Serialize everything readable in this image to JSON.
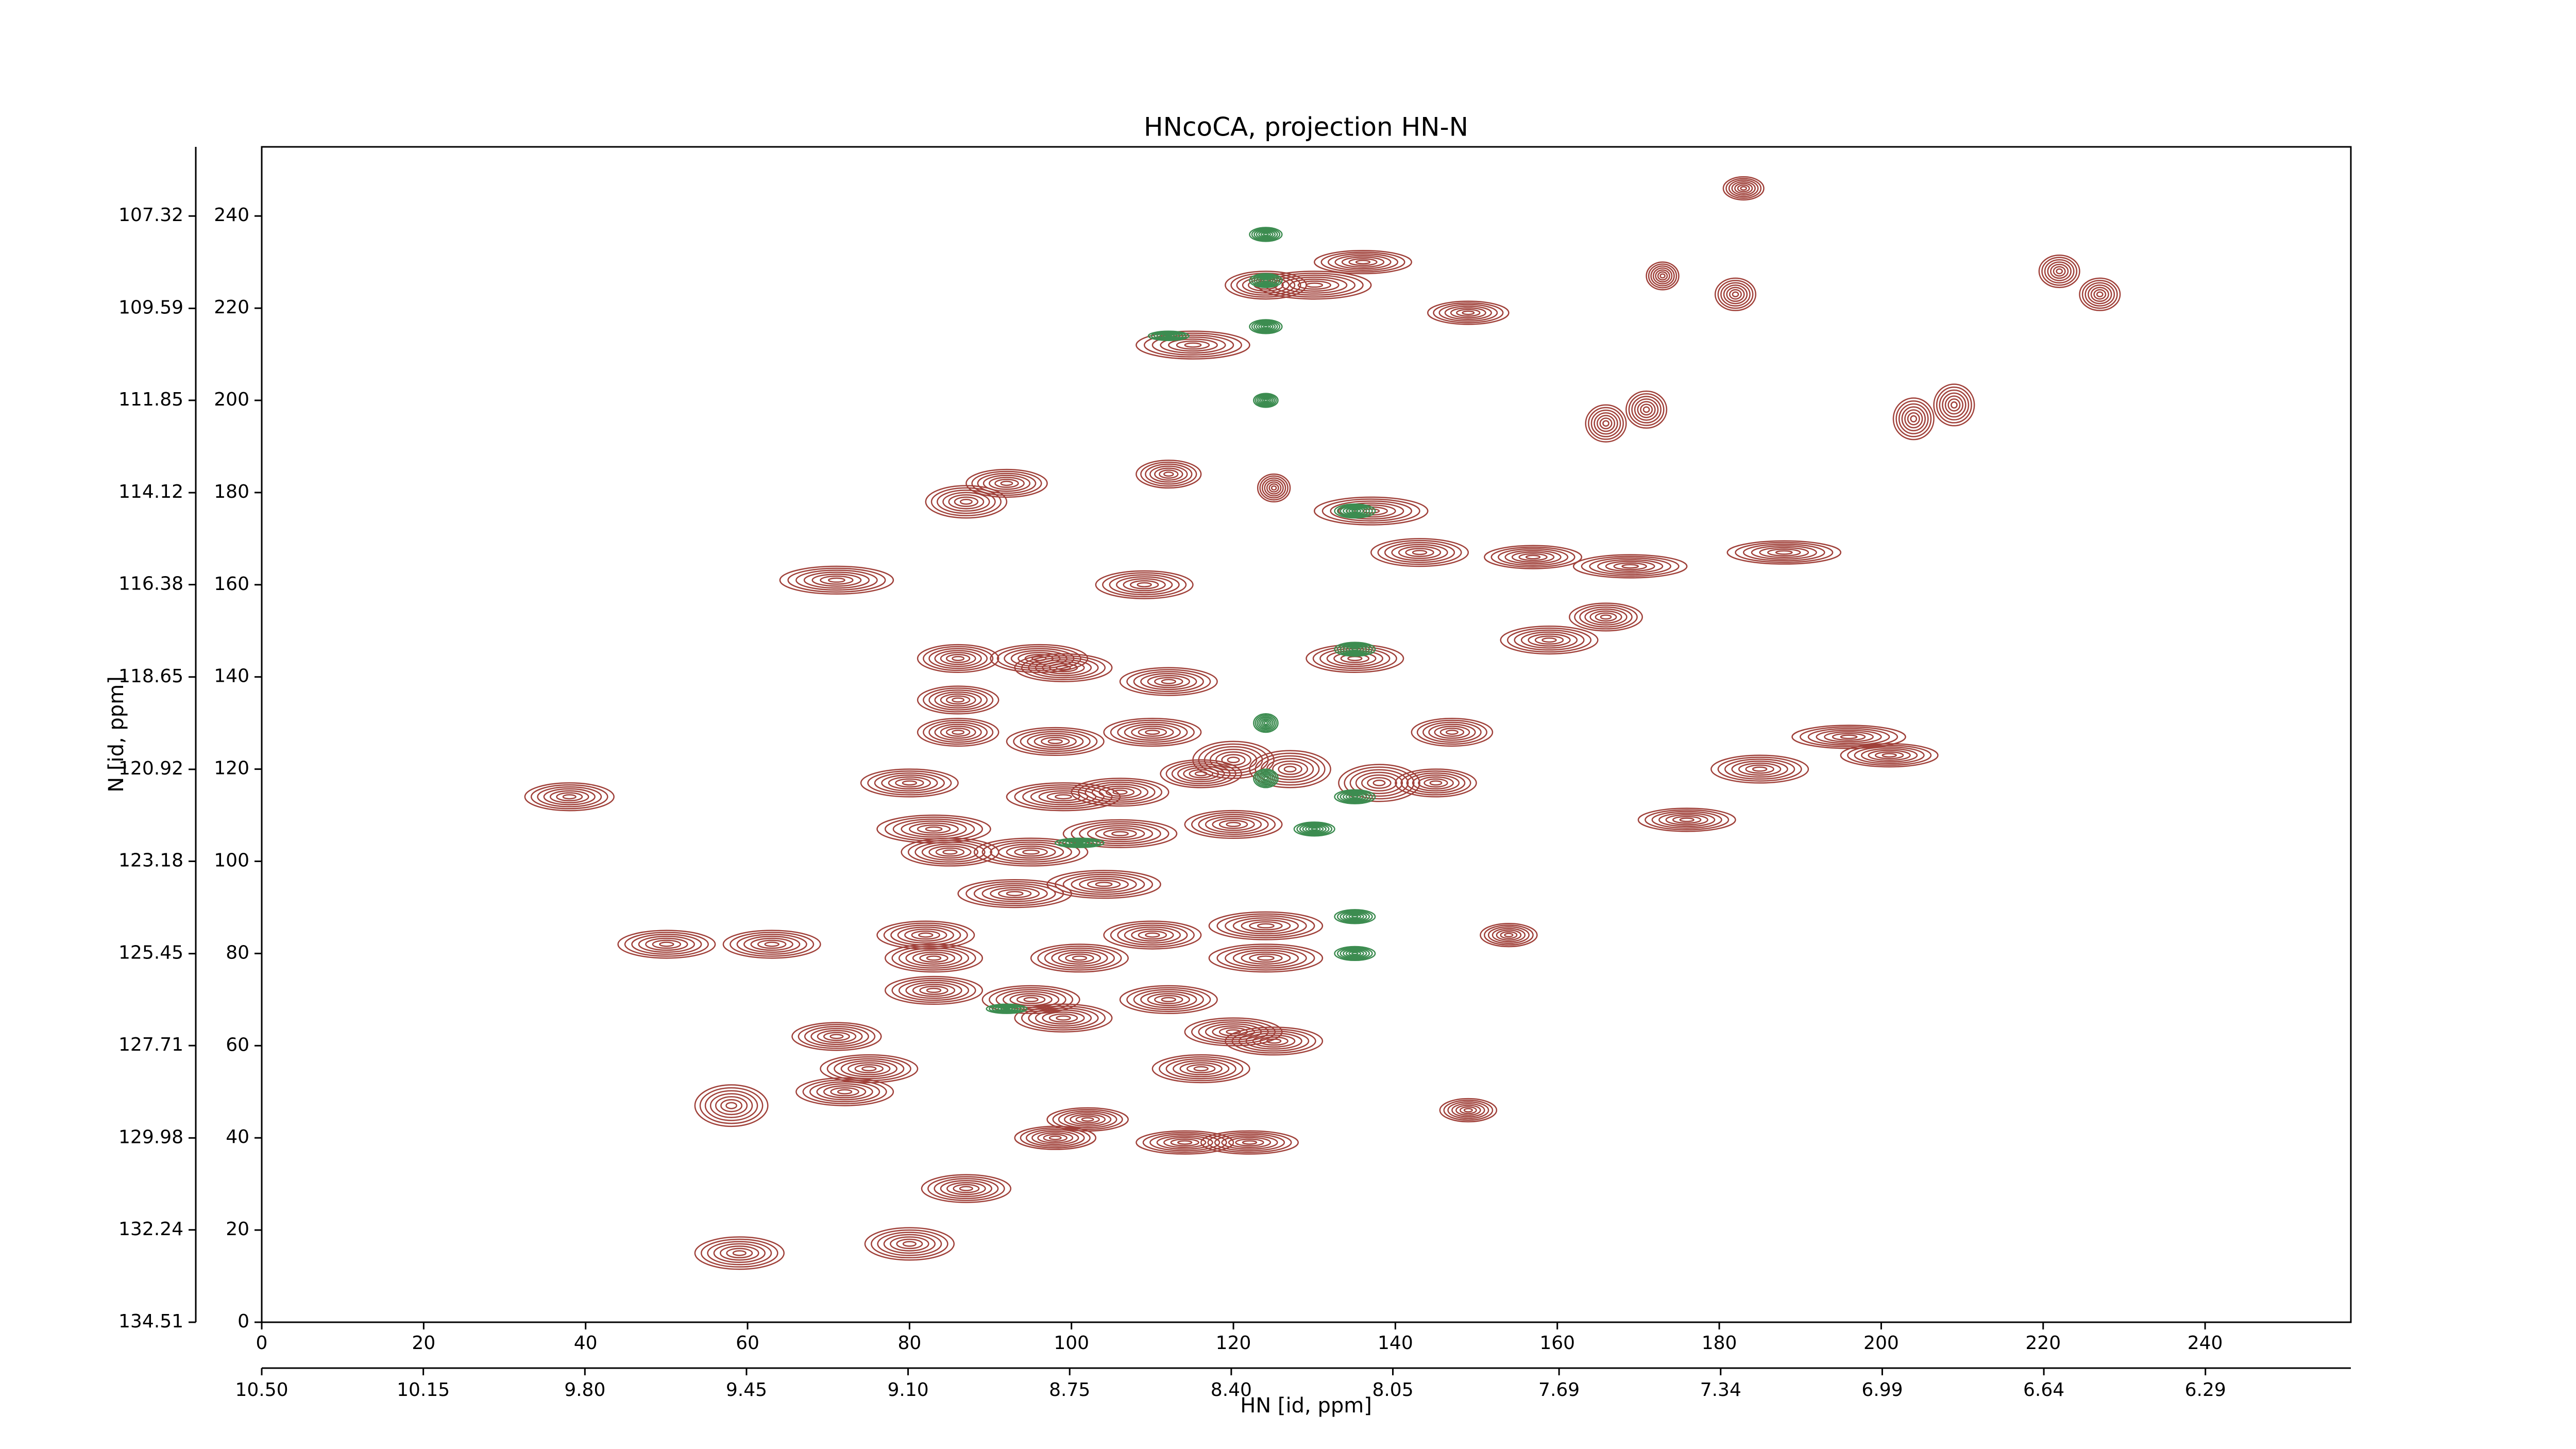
{
  "chart_data": {
    "type": "contour",
    "title": "HNcoCA, projection HN-N",
    "xlabel": "HN [id, ppm]",
    "ylabel": "N [id, ppm]",
    "xlim": [
      0,
      258
    ],
    "ylim": [
      0,
      255
    ],
    "xticks": [
      0,
      20,
      40,
      60,
      80,
      100,
      120,
      140,
      160,
      180,
      200,
      220,
      240
    ],
    "yticks": [
      0,
      20,
      40,
      60,
      80,
      100,
      120,
      140,
      160,
      180,
      200,
      220,
      240
    ],
    "x2lim": [
      10.5,
      5.975
    ],
    "x2ticks": [
      {
        "value": 10.5,
        "label": "10.50"
      },
      10.15,
      {
        "value": 9.8,
        "label": "9.80"
      },
      9.45,
      {
        "value": 9.1,
        "label": "9.10"
      },
      8.75,
      {
        "value": 8.4,
        "label": "8.40"
      },
      8.05,
      7.69,
      7.34,
      6.99,
      6.64,
      6.29
    ],
    "y2lim": [
      134.51,
      105.62
    ],
    "y2ticks": [
      134.51,
      132.24,
      129.98,
      127.71,
      125.45,
      123.18,
      120.92,
      118.65,
      116.38,
      114.12,
      111.85,
      109.59,
      107.32
    ],
    "levels": 7,
    "series": [
      {
        "color": "#a0413a",
        "x": [
          38,
          50,
          63,
          71,
          58,
          59,
          80,
          87,
          71,
          72,
          75,
          83,
          83,
          82,
          80,
          83,
          85,
          86,
          86,
          86,
          87,
          92,
          96,
          99,
          98,
          99,
          95,
          93,
          95,
          99,
          101,
          104,
          106,
          109,
          112,
          115,
          110,
          112,
          116,
          110,
          112,
          116,
          102,
          98,
          114,
          122,
          120,
          125,
          124,
          124,
          124,
          130,
          136,
          120,
          127,
          138,
          135,
          137,
          143,
          147,
          145,
          149,
          154,
          149,
          157,
          159,
          166,
          169,
          176,
          185,
          188,
          196,
          201,
          166,
          171,
          204,
          209,
          173,
          182,
          222,
          227,
          125,
          183,
          106,
          120
        ],
        "y": [
          114,
          82,
          82,
          161,
          47,
          15,
          17,
          29,
          62,
          50,
          55,
          72,
          79,
          84,
          117,
          107,
          102,
          135,
          128,
          144,
          178,
          182,
          144,
          142,
          126,
          114,
          102,
          93,
          70,
          66,
          79,
          95,
          106,
          160,
          184,
          212,
          128,
          139,
          119,
          84,
          70,
          55,
          44,
          40,
          39,
          39,
          63,
          61,
          79,
          86,
          225,
          225,
          230,
          122,
          120,
          117,
          144,
          176,
          167,
          128,
          117,
          219,
          84,
          46,
          166,
          148,
          153,
          164,
          109,
          120,
          167,
          127,
          123,
          195,
          198,
          196,
          199,
          227,
          223,
          228,
          223,
          181,
          246,
          115,
          108
        ],
        "width": [
          11,
          12,
          12,
          14,
          9,
          11,
          11,
          11,
          11,
          12,
          12,
          12,
          12,
          12,
          12,
          14,
          12,
          10,
          10,
          10,
          10,
          10,
          12,
          12,
          12,
          14,
          14,
          14,
          12,
          12,
          12,
          14,
          14,
          12,
          8,
          14,
          12,
          12,
          10,
          12,
          12,
          12,
          10,
          10,
          12,
          12,
          12,
          12,
          14,
          14,
          10,
          14,
          12,
          10,
          10,
          10,
          12,
          14,
          12,
          10,
          10,
          10,
          7,
          7,
          12,
          12,
          9,
          14,
          12,
          12,
          14,
          14,
          12,
          5,
          5,
          5,
          5,
          4,
          5,
          5,
          5,
          4,
          5,
          12,
          12
        ],
        "height": [
          6,
          6,
          6,
          6,
          9,
          7,
          7,
          6,
          6,
          6,
          6,
          6,
          6,
          6,
          6,
          6,
          6,
          6,
          6,
          6,
          7,
          6,
          6,
          6,
          6,
          6,
          6,
          6,
          6,
          6,
          6,
          6,
          6,
          6,
          6,
          6,
          6,
          6,
          6,
          6,
          6,
          6,
          5,
          5,
          5,
          5,
          6,
          6,
          6,
          6,
          6,
          6,
          5,
          8,
          8,
          8,
          6,
          6,
          6,
          6,
          6,
          5,
          5,
          5,
          5,
          6,
          6,
          5,
          5,
          6,
          5,
          5,
          5,
          8,
          8,
          9,
          9,
          6,
          7,
          7,
          7,
          6,
          5,
          6,
          6
        ]
      },
      {
        "color": "#3c8c50",
        "x": [
          124,
          124,
          124,
          124,
          124,
          124,
          135,
          135,
          135,
          135,
          135,
          130,
          101,
          112,
          92
        ],
        "y": [
          236,
          226,
          216,
          200,
          130,
          118,
          176,
          146,
          114,
          88,
          80,
          107,
          104,
          214,
          68
        ],
        "width": [
          4,
          4,
          4,
          3,
          3,
          3,
          5,
          5,
          5,
          5,
          5,
          5,
          6,
          5,
          5
        ],
        "height": [
          3,
          3,
          3,
          3,
          4,
          4,
          3,
          3,
          3,
          3,
          3,
          3,
          2,
          2,
          2
        ]
      }
    ]
  }
}
